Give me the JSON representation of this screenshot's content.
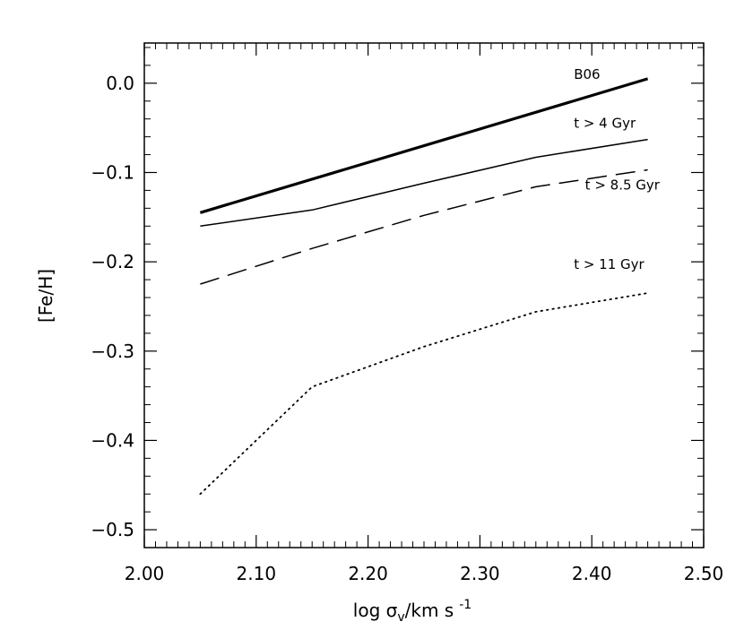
{
  "chart_data": {
    "type": "line",
    "title": "",
    "xlabel": {
      "main": "log σ",
      "subscript": "v",
      "rest": "/km s",
      "superscript": "-1"
    },
    "ylabel": "[Fe/H]",
    "xlim": [
      2.0,
      2.5
    ],
    "ylim": [
      -0.52,
      0.045
    ],
    "x_ticks": [
      "2.00",
      "2.10",
      "2.20",
      "2.30",
      "2.40",
      "2.50"
    ],
    "y_ticks": [
      "0.0",
      "-0.1",
      "-0.2",
      "-0.3",
      "-0.4",
      "-0.5"
    ],
    "grid": false,
    "series": [
      {
        "name": "B06",
        "style": "thick-solid",
        "x": [
          2.05,
          2.45
        ],
        "y": [
          -0.145,
          0.005
        ]
      },
      {
        "name": "t > 4 Gyr",
        "style": "solid",
        "x": [
          2.05,
          2.15,
          2.25,
          2.35,
          2.45
        ],
        "y": [
          -0.16,
          -0.142,
          -0.112,
          -0.083,
          -0.063
        ]
      },
      {
        "name": "t > 8.5 Gyr",
        "style": "dashed",
        "x": [
          2.05,
          2.15,
          2.25,
          2.35,
          2.45
        ],
        "y": [
          -0.225,
          -0.185,
          -0.148,
          -0.116,
          -0.097
        ]
      },
      {
        "name": "t > 11 Gyr",
        "style": "dotted",
        "x": [
          2.05,
          2.15,
          2.25,
          2.35,
          2.45
        ],
        "y": [
          -0.46,
          -0.34,
          -0.295,
          -0.256,
          -0.235
        ]
      }
    ]
  }
}
